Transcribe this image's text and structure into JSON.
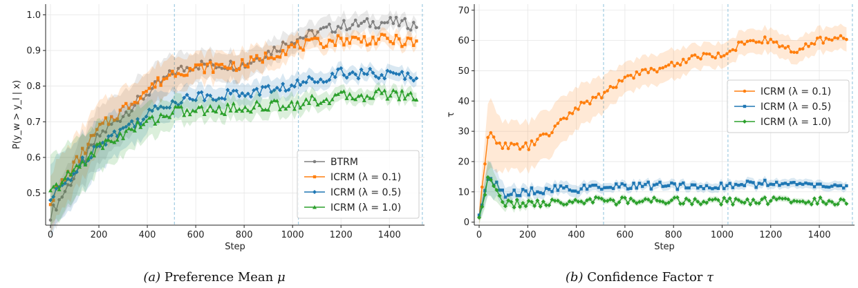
{
  "colors": {
    "BTRM": "#7f7f7f",
    "ICRM (λ = 0.1)": "#ff7f0e",
    "ICRM (λ = 0.5)": "#1f77b4",
    "ICRM (λ = 1.0)": "#2ca02c",
    "vline": "#9ecae1",
    "grid": "#e6e6e6"
  },
  "captions": [
    {
      "prefix": "(a)",
      "text": "Preference Mean",
      "symbol": "μ"
    },
    {
      "prefix": "(b)",
      "text": "Confidence Factor",
      "symbol": "τ"
    }
  ],
  "chart_data": [
    {
      "type": "line",
      "xlabel": "Step",
      "ylabel": "P(y_w > y_l | x)",
      "xlim": [
        -20,
        1545
      ],
      "ylim": [
        0.41,
        1.03
      ],
      "xticks": [
        0,
        200,
        400,
        600,
        800,
        1000,
        1200,
        1400
      ],
      "yticks": [
        0.5,
        0.6,
        0.7,
        0.8,
        0.9,
        1.0
      ],
      "vlines": [
        512,
        1024,
        1536
      ],
      "grid": true,
      "legend": "lower right",
      "series": [
        {
          "name": "BTRM",
          "marker": "circle",
          "x": [
            0,
            200,
            400,
            512,
            600,
            800,
            1000,
            1200,
            1400,
            1520
          ],
          "y": [
            0.44,
            0.66,
            0.78,
            0.84,
            0.86,
            0.86,
            0.93,
            0.97,
            0.98,
            0.97
          ],
          "band": [
            0.05,
            0.08,
            0.06,
            0.05,
            0.04,
            0.04,
            0.03,
            0.03,
            0.02,
            0.02
          ]
        },
        {
          "name": "ICRM (λ = 0.1)",
          "marker": "square",
          "x": [
            0,
            200,
            400,
            512,
            600,
            800,
            1000,
            1200,
            1400,
            1520
          ],
          "y": [
            0.48,
            0.68,
            0.79,
            0.84,
            0.85,
            0.86,
            0.91,
            0.93,
            0.93,
            0.92
          ],
          "band": [
            0.08,
            0.07,
            0.05,
            0.05,
            0.04,
            0.04,
            0.03,
            0.02,
            0.02,
            0.02
          ]
        },
        {
          "name": "ICRM (λ = 0.5)",
          "marker": "diamond",
          "x": [
            0,
            200,
            400,
            512,
            600,
            800,
            1000,
            1200,
            1400,
            1520
          ],
          "y": [
            0.48,
            0.64,
            0.72,
            0.76,
            0.77,
            0.78,
            0.8,
            0.84,
            0.83,
            0.83
          ],
          "band": [
            0.1,
            0.07,
            0.05,
            0.04,
            0.03,
            0.03,
            0.03,
            0.02,
            0.02,
            0.02
          ]
        },
        {
          "name": "ICRM (λ = 1.0)",
          "marker": "triangle",
          "x": [
            0,
            200,
            400,
            512,
            600,
            800,
            1000,
            1200,
            1400,
            1520
          ],
          "y": [
            0.5,
            0.63,
            0.7,
            0.73,
            0.73,
            0.74,
            0.75,
            0.77,
            0.78,
            0.77
          ],
          "band": [
            0.1,
            0.07,
            0.05,
            0.04,
            0.03,
            0.03,
            0.03,
            0.02,
            0.02,
            0.02
          ]
        }
      ]
    },
    {
      "type": "line",
      "xlabel": "Step",
      "ylabel": "τ",
      "xlim": [
        -20,
        1545
      ],
      "ylim": [
        -1,
        72
      ],
      "xticks": [
        0,
        200,
        400,
        600,
        800,
        1000,
        1200,
        1400
      ],
      "yticks": [
        0,
        10,
        20,
        30,
        40,
        50,
        60,
        70
      ],
      "vlines": [
        512,
        1024,
        1536
      ],
      "grid": true,
      "legend": "center right",
      "series": [
        {
          "name": "ICRM (λ = 0.1)",
          "marker": "circle",
          "x": [
            0,
            40,
            100,
            200,
            300,
            400,
            512,
            600,
            700,
            800,
            900,
            1000,
            1100,
            1200,
            1300,
            1400,
            1520
          ],
          "y": [
            2,
            30,
            25,
            25,
            30,
            38,
            42,
            48,
            50,
            52,
            55,
            55,
            60,
            60,
            56,
            60,
            61
          ],
          "band": [
            3,
            12,
            8,
            8,
            8,
            7,
            6,
            5,
            5,
            5,
            4,
            4,
            4,
            4,
            4,
            4,
            4
          ]
        },
        {
          "name": "ICRM (λ = 0.5)",
          "marker": "square",
          "x": [
            0,
            40,
            100,
            200,
            300,
            400,
            512,
            600,
            800,
            1000,
            1200,
            1400,
            1520
          ],
          "y": [
            3,
            15,
            9,
            10,
            11,
            11,
            11,
            12,
            12,
            12,
            13,
            12,
            12
          ],
          "band": [
            2,
            6,
            3,
            2,
            2,
            2,
            1.5,
            1.5,
            1.5,
            1.5,
            1.5,
            1.5,
            1.5
          ]
        },
        {
          "name": "ICRM (λ = 1.0)",
          "marker": "diamond",
          "x": [
            0,
            40,
            100,
            200,
            300,
            400,
            512,
            600,
            800,
            1000,
            1200,
            1400,
            1520
          ],
          "y": [
            2,
            15,
            6,
            6,
            6.5,
            7,
            7,
            7,
            7,
            7,
            7,
            7,
            7
          ],
          "band": [
            2,
            6,
            2,
            1.5,
            1,
            1,
            1,
            1,
            1,
            1,
            1,
            1,
            1
          ]
        }
      ]
    }
  ]
}
